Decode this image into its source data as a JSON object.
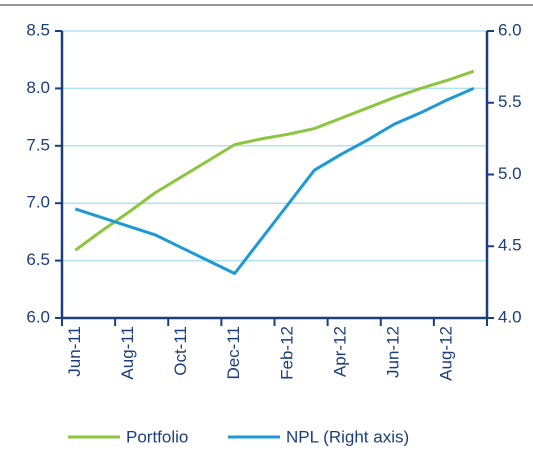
{
  "chart_data": {
    "type": "line",
    "categories": [
      "Jun-11",
      null,
      "Aug-11",
      null,
      "Oct-11",
      null,
      "Dec-11",
      null,
      "Feb-12",
      null,
      "Apr-12",
      null,
      "Jun-12",
      null,
      "Aug-12",
      null
    ],
    "series": [
      {
        "name": "Portfolio",
        "color": "#8cc63f",
        "values": [
          6.59,
          6.76,
          6.92,
          7.09,
          7.23,
          7.37,
          7.51,
          7.56,
          7.6,
          7.65,
          7.74,
          7.83,
          7.92,
          8.0,
          8.07,
          8.15
        ]
      },
      {
        "name": "NPL (Right axis)",
        "color": "#1d9ad6",
        "axis": "y2",
        "values": [
          4.76,
          4.7,
          4.64,
          4.58,
          4.49,
          4.4,
          4.31,
          4.55,
          4.79,
          5.03,
          5.14,
          5.24,
          5.35,
          5.43,
          5.52,
          5.6
        ]
      }
    ],
    "ylim": [
      6,
      8.5
    ],
    "yticks": [
      {
        "value": 6,
        "label": "6.0"
      },
      6.5,
      {
        "value": 7,
        "label": "7.0"
      },
      7.5,
      {
        "value": 8,
        "label": "8.0"
      },
      8.5
    ],
    "y2lim": [
      4,
      6
    ],
    "y2ticks": [
      {
        "value": 4,
        "label": "4.0"
      },
      4.5,
      {
        "value": 5,
        "label": "5.0"
      },
      5.5,
      {
        "value": 6,
        "label": "6.0"
      }
    ],
    "grid": true,
    "legend": "bottom"
  }
}
